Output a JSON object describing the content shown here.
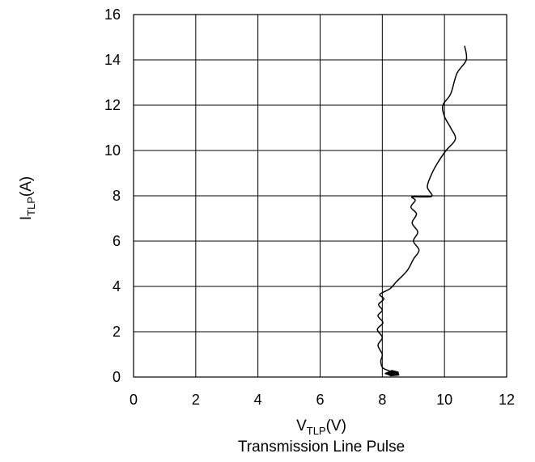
{
  "chart_data": {
    "type": "line",
    "xlabel": {
      "main": "V",
      "sub": "TLP",
      "suffix": "(V)"
    },
    "ylabel": {
      "main": "I",
      "sub": "TLP",
      "suffix": "(A)"
    },
    "caption": "Transmission Line Pulse",
    "xlim": [
      0,
      12
    ],
    "ylim": [
      0,
      16
    ],
    "xticks": [
      0,
      2,
      4,
      6,
      8,
      10,
      12
    ],
    "yticks": [
      0,
      2,
      4,
      6,
      8,
      10,
      12,
      14,
      16
    ],
    "grid": true,
    "line_color": "#000000",
    "series": [
      {
        "x": [
          8.38,
          8.1,
          8.25,
          8.02,
          7.95,
          8.0,
          7.86,
          8.0,
          7.84,
          8.02,
          7.86,
          8.0,
          7.88,
          8.05,
          7.92,
          8.25,
          8.45,
          8.8,
          9.0,
          9.18,
          9.0,
          9.14,
          8.96,
          9.1,
          8.92,
          9.06,
          8.95,
          9.3,
          9.6,
          9.45,
          9.6,
          9.8,
          10.05,
          10.35,
          10.2,
          10.0,
          9.95,
          10.2,
          10.4,
          10.7,
          10.65
        ],
        "y": [
          0.12,
          0.15,
          0.25,
          0.4,
          0.7,
          1.0,
          1.4,
          1.75,
          2.1,
          2.4,
          2.7,
          2.95,
          3.2,
          3.45,
          3.65,
          3.9,
          4.2,
          4.7,
          5.2,
          5.6,
          6.0,
          6.4,
          6.8,
          7.2,
          7.5,
          7.8,
          7.95,
          7.95,
          8.0,
          8.4,
          9.0,
          9.5,
          10.0,
          10.5,
          11.0,
          11.5,
          12.0,
          12.5,
          13.4,
          14.0,
          14.6
        ]
      }
    ]
  }
}
